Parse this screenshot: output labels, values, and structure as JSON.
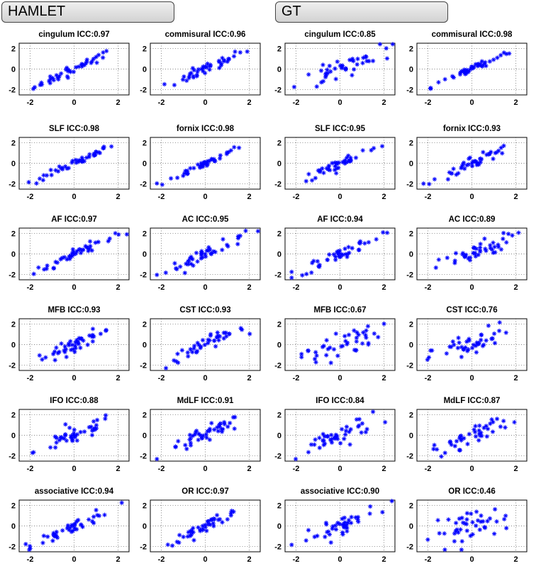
{
  "groups": [
    {
      "name": "HAMLET",
      "plots": [
        {
          "tract": "cingulum",
          "icc": "0.97"
        },
        {
          "tract": "commisural",
          "icc": "0.96"
        },
        {
          "tract": "SLF",
          "icc": "0.98"
        },
        {
          "tract": "fornix",
          "icc": "0.98"
        },
        {
          "tract": "AF",
          "icc": "0.97"
        },
        {
          "tract": "AC",
          "icc": "0.95"
        },
        {
          "tract": "MFB",
          "icc": "0.93"
        },
        {
          "tract": "CST",
          "icc": "0.93"
        },
        {
          "tract": "IFO",
          "icc": "0.88"
        },
        {
          "tract": "MdLF",
          "icc": "0.91"
        },
        {
          "tract": "associative",
          "icc": "0.94"
        },
        {
          "tract": "OR",
          "icc": "0.97"
        }
      ]
    },
    {
      "name": "GT",
      "plots": [
        {
          "tract": "cingulum",
          "icc": "0.85"
        },
        {
          "tract": "commisural",
          "icc": "0.98"
        },
        {
          "tract": "SLF",
          "icc": "0.95"
        },
        {
          "tract": "fornix",
          "icc": "0.93"
        },
        {
          "tract": "AF",
          "icc": "0.94"
        },
        {
          "tract": "AC",
          "icc": "0.89"
        },
        {
          "tract": "MFB",
          "icc": "0.67"
        },
        {
          "tract": "CST",
          "icc": "0.76"
        },
        {
          "tract": "IFO",
          "icc": "0.84"
        },
        {
          "tract": "MdLF",
          "icc": "0.87"
        },
        {
          "tract": "associative",
          "icc": "0.90"
        },
        {
          "tract": "OR",
          "icc": "0.46"
        }
      ]
    }
  ],
  "chart_data": {
    "type": "scatter",
    "panels": 24,
    "xlim": [
      -2.5,
      2.5
    ],
    "ylim": [
      -2.5,
      2.5
    ],
    "xticks": [
      -2,
      0,
      2
    ],
    "yticks": [
      -2,
      0,
      2
    ],
    "grid": true,
    "marker": "*",
    "marker_color": "#0000ff"
  }
}
